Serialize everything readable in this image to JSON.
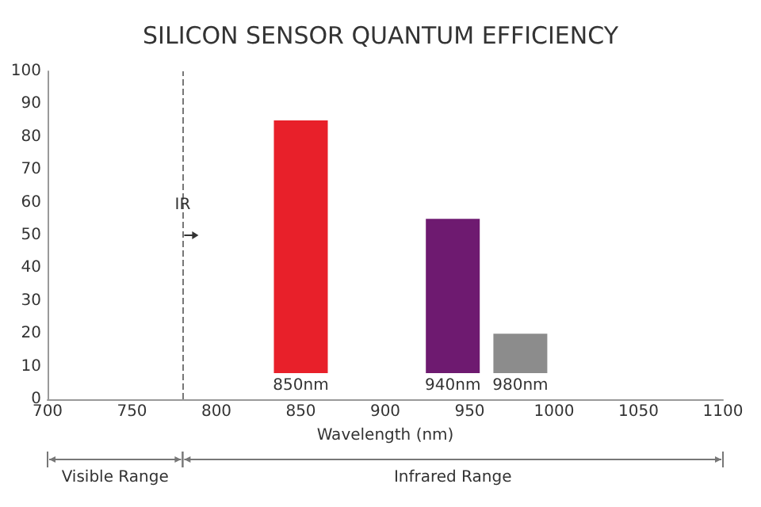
{
  "chart_data": {
    "type": "bar",
    "title": "SILICON SENSOR QUANTUM EFFICIENCY",
    "xlabel": "Wavelength (nm)",
    "x": [
      850,
      940,
      980
    ],
    "base": [
      8,
      8,
      8
    ],
    "values": [
      77,
      47,
      12
    ],
    "colors": [
      "#e8202a",
      "#6e1a70",
      "#8c8c8c"
    ],
    "xlim": [
      700,
      1100
    ],
    "xticks": [
      700,
      750,
      800,
      850,
      900,
      950,
      1000,
      1050,
      1100
    ],
    "ylim": [
      0,
      100
    ],
    "yticks": [
      0,
      10,
      20,
      30,
      40,
      50,
      60,
      70,
      80,
      90,
      100
    ],
    "grid": false,
    "ref_lines": [
      {
        "axis": "x",
        "value": 780,
        "label": "IR",
        "line_style": "dashed",
        "color": "#777777"
      }
    ],
    "annotations": [
      {
        "text": "850nm",
        "x": 850,
        "y": 8
      },
      {
        "text": "940nm",
        "x": 940,
        "y": 8
      },
      {
        "text": "980nm",
        "x": 980,
        "y": 8
      },
      "Visible Range",
      "Infrared Range"
    ]
  }
}
